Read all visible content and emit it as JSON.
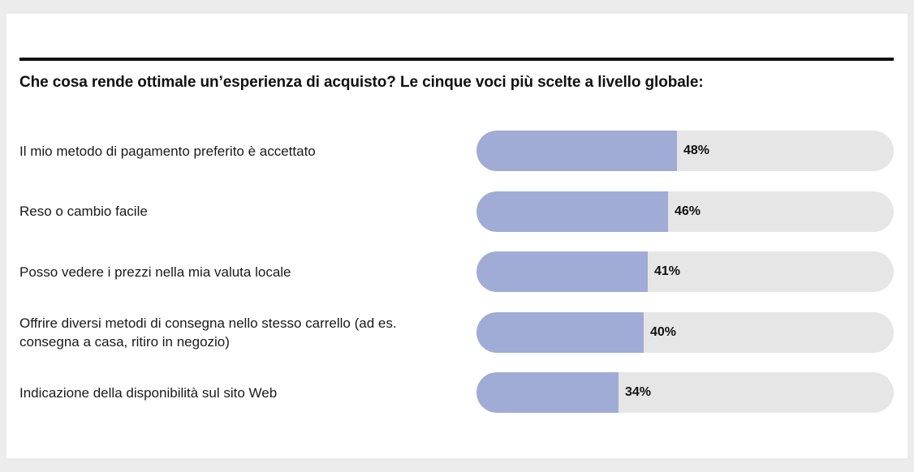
{
  "chart_data": {
    "type": "bar",
    "orientation": "horizontal",
    "title": "Che cosa rende ottimale un’esperienza di acquisto? Le cinque voci più scelte a livello globale:",
    "categories": [
      "Il mio metodo di pagamento preferito è accettato",
      "Reso o cambio facile",
      "Posso vedere i prezzi nella mia valuta locale",
      "Offrire diversi metodi di consegna nello stesso carrello (ad es. consegna a casa, ritiro in negozio)",
      "Indicazione della disponibilità sul sito Web"
    ],
    "values": [
      48,
      46,
      41,
      40,
      34
    ],
    "value_labels": [
      "48%",
      "46%",
      "41%",
      "40%",
      "34%"
    ],
    "xlim": [
      0,
      100
    ],
    "grid": false,
    "colors": {
      "fill": "#a0acd6",
      "track": "#e6e6e6"
    }
  }
}
